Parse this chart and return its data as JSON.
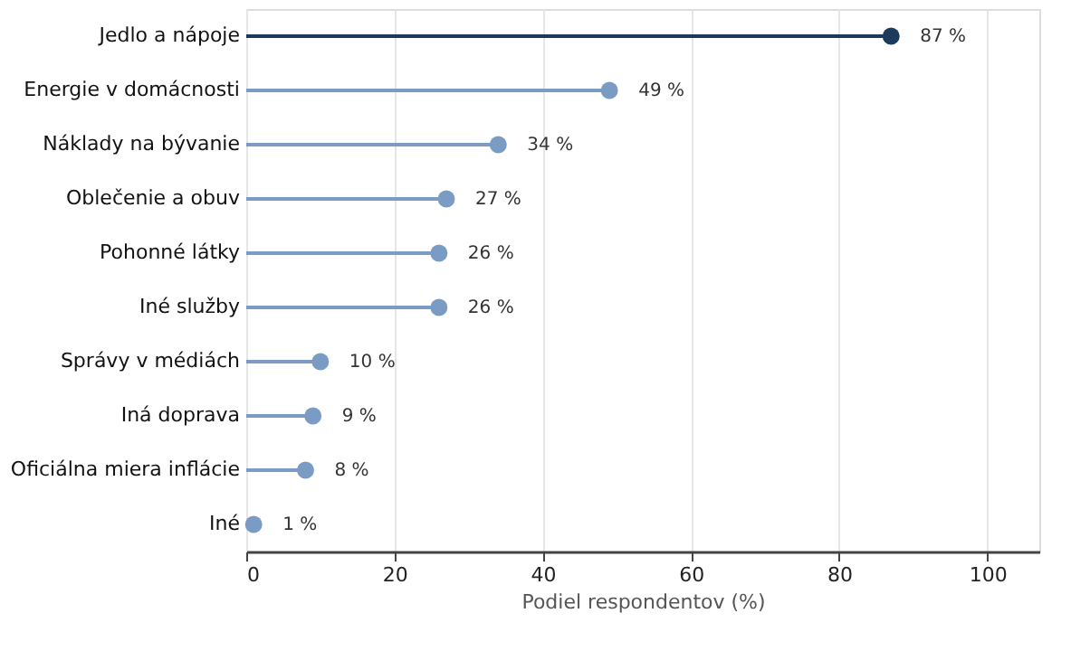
{
  "chart_data": {
    "type": "lollipop",
    "orientation": "horizontal",
    "categories": [
      "Jedlo a nápoje",
      "Energie v domácnosti",
      "Náklady na bývanie",
      "Oblečenie a obuv",
      "Pohonné látky",
      "Iné služby",
      "Správy v médiách",
      "Iná doprava",
      "Oficiálna miera inflácie",
      "Iné"
    ],
    "values": [
      87,
      49,
      34,
      27,
      26,
      26,
      10,
      9,
      8,
      1
    ],
    "value_labels": [
      "87 %",
      "49 %",
      "34 %",
      "27 %",
      "26 %",
      "26 %",
      "10 %",
      "9 %",
      "8 %",
      "1 %"
    ],
    "colors": [
      "#1b3a5c",
      "#7a9cc4",
      "#7a9cc4",
      "#7a9cc4",
      "#7a9cc4",
      "#7a9cc4",
      "#7a9cc4",
      "#7a9cc4",
      "#7a9cc4",
      "#7a9cc4"
    ],
    "xlabel": "Podiel respondentov (%)",
    "xlim": [
      0,
      107
    ],
    "xticks": [
      0,
      20,
      40,
      60,
      80,
      100
    ],
    "grid": "x"
  }
}
